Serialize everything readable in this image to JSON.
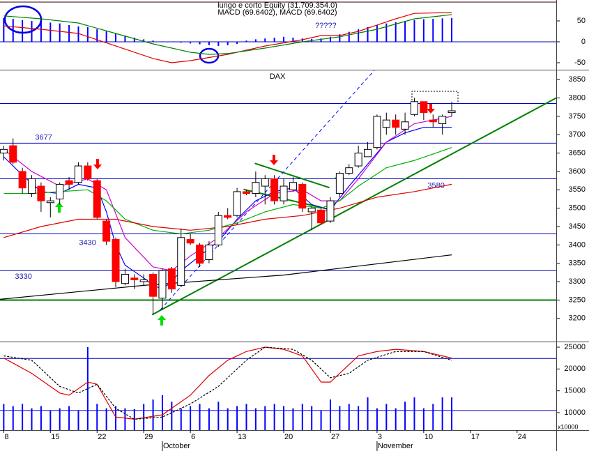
{
  "chart_data": [
    {
      "type": "bar",
      "title": "lungo e corto Equity (31.709.354.0)",
      "subtitle": "MACD (69.6402), MACD (69.6402)",
      "color": "#0000ff",
      "xlim": [
        -0.4,
        59.2
      ],
      "ylim": [
        -66.7,
        100
      ],
      "yticks": [
        50,
        0,
        -50
      ],
      "hlines": [
        0
      ],
      "values": [
        57,
        55,
        52,
        50,
        48,
        46,
        44,
        40,
        37,
        35,
        30,
        25,
        20,
        15,
        10,
        6,
        3,
        1,
        0,
        -2,
        -4,
        -6,
        -8,
        -10,
        -8,
        -5,
        3,
        6,
        8,
        10,
        12,
        10,
        8,
        7,
        8,
        12,
        18,
        24,
        30,
        35,
        40,
        44,
        47,
        50,
        52,
        54,
        55,
        56,
        57
      ],
      "series": [
        {
          "color": "#e00000",
          "x": [
            0,
            4,
            8,
            12,
            16,
            18,
            20,
            24,
            28,
            32,
            34,
            36,
            38,
            40,
            42,
            44,
            48
          ],
          "values": [
            38,
            30,
            20,
            -10,
            -40,
            -50,
            -45,
            -30,
            -10,
            5,
            15,
            15,
            25,
            40,
            55,
            68,
            70
          ]
        },
        {
          "color": "#008000",
          "x": [
            0,
            4,
            8,
            12,
            16,
            20,
            22,
            24,
            28,
            32,
            36,
            40,
            44,
            48
          ],
          "values": [
            62,
            55,
            45,
            20,
            -5,
            -25,
            -30,
            -28,
            -15,
            0,
            12,
            30,
            55,
            65
          ]
        }
      ],
      "annotations": [
        {
          "text": "?????",
          "x": 34.5,
          "y": 38
        }
      ]
    },
    {
      "type": "candlestick",
      "title": "DAX",
      "xlim": [
        -0.4,
        59.2
      ],
      "ylim": [
        3137,
        3875
      ],
      "yticks": [
        3200,
        3250,
        3300,
        3350,
        3400,
        3450,
        3500,
        3550,
        3600,
        3650,
        3700,
        3750,
        3800,
        3850
      ],
      "up_color": "#ffffff",
      "down_color": "#ff0000",
      "open": [
        3650,
        3670,
        3600,
        3540,
        3560,
        3515,
        3525,
        3575,
        3570,
        3615,
        3575,
        3465,
        3415,
        3295,
        3310,
        3300,
        3320,
        3255,
        3335,
        3290,
        3415,
        3400,
        3360,
        3400,
        3480,
        3480,
        3545,
        3540,
        3560,
        3580,
        3520,
        3550,
        3565,
        3490,
        3495,
        3465,
        3540,
        3595,
        3615,
        3640,
        3665,
        3720,
        3740,
        3715,
        3755,
        3790,
        3740,
        3730,
        3760
      ],
      "high": [
        3670,
        3690,
        3610,
        3590,
        3570,
        3530,
        3570,
        3585,
        3625,
        3625,
        3580,
        3470,
        3420,
        3335,
        3320,
        3320,
        3325,
        3335,
        3340,
        3445,
        3430,
        3405,
        3410,
        3490,
        3500,
        3555,
        3550,
        3600,
        3590,
        3590,
        3580,
        3585,
        3570,
        3505,
        3500,
        3530,
        3600,
        3620,
        3670,
        3680,
        3755,
        3760,
        3755,
        3760,
        3800,
        3790,
        3755,
        3755,
        3790
      ],
      "low": [
        3630,
        3620,
        3540,
        3530,
        3490,
        3475,
        3510,
        3550,
        3565,
        3575,
        3470,
        3400,
        3285,
        3290,
        3280,
        3290,
        3210,
        3225,
        3270,
        3285,
        3400,
        3340,
        3350,
        3395,
        3470,
        3475,
        3535,
        3530,
        3510,
        3510,
        3510,
        3545,
        3490,
        3440,
        3455,
        3460,
        3530,
        3590,
        3610,
        3640,
        3660,
        3700,
        3700,
        3700,
        3750,
        3740,
        3720,
        3700,
        3750
      ],
      "close": [
        3660,
        3625,
        3555,
        3580,
        3520,
        3520,
        3565,
        3565,
        3615,
        3580,
        3475,
        3410,
        3300,
        3320,
        3305,
        3305,
        3260,
        3330,
        3280,
        3420,
        3405,
        3350,
        3400,
        3480,
        3475,
        3545,
        3540,
        3570,
        3580,
        3520,
        3560,
        3570,
        3500,
        3500,
        3460,
        3520,
        3595,
        3610,
        3650,
        3660,
        3750,
        3740,
        3720,
        3735,
        3790,
        3760,
        3735,
        3750,
        3765
      ],
      "levels": [
        3677,
        3580,
        3430,
        3330
      ],
      "hlines": [
        3785
      ],
      "support": 3250,
      "series": [
        {
          "color": "#0000ff",
          "x": [
            0,
            2,
            4,
            6,
            8,
            10,
            11,
            12,
            13,
            15,
            16,
            17,
            18,
            19,
            21,
            23,
            25,
            27,
            29,
            31,
            33,
            35,
            37,
            39,
            41,
            43,
            45,
            48
          ],
          "values": [
            3640,
            3590,
            3545,
            3540,
            3565,
            3555,
            3490,
            3400,
            3345,
            3310,
            3290,
            3280,
            3300,
            3330,
            3370,
            3410,
            3470,
            3520,
            3545,
            3555,
            3510,
            3495,
            3560,
            3620,
            3680,
            3705,
            3720,
            3720
          ]
        },
        {
          "color": "#d000d0",
          "x": [
            0,
            3,
            6,
            9,
            11,
            13,
            16,
            18,
            20,
            23,
            26,
            29,
            32,
            34,
            36,
            38,
            41,
            44,
            48
          ],
          "values": [
            3660,
            3600,
            3560,
            3580,
            3550,
            3420,
            3340,
            3330,
            3370,
            3420,
            3490,
            3540,
            3550,
            3520,
            3520,
            3580,
            3680,
            3730,
            3750
          ]
        },
        {
          "color": "#00b000",
          "x": [
            0,
            3,
            6,
            9,
            11,
            13,
            16,
            19,
            22,
            25,
            28,
            31,
            34,
            36,
            38,
            41,
            44,
            48
          ],
          "values": [
            3540,
            3540,
            3545,
            3550,
            3520,
            3470,
            3440,
            3430,
            3440,
            3460,
            3490,
            3510,
            3500,
            3520,
            3560,
            3610,
            3630,
            3665
          ]
        },
        {
          "color": "#e00000",
          "x": [
            0,
            4,
            8,
            12,
            16,
            20,
            24,
            28,
            32,
            36,
            40,
            44,
            48
          ],
          "values": [
            3420,
            3450,
            3470,
            3470,
            3450,
            3440,
            3450,
            3470,
            3480,
            3500,
            3530,
            3545,
            3565
          ]
        },
        {
          "color": "#000000",
          "x": [
            -0.4,
            15,
            30,
            48
          ],
          "values": [
            3252,
            3290,
            3318,
            3373
          ]
        }
      ],
      "trendlines": [
        {
          "color": "#008000",
          "x": [
            15.9,
            59.2
          ],
          "y": [
            3210,
            3800
          ]
        },
        {
          "color": "#008000",
          "x": [
            26.9,
            34.9
          ],
          "y": [
            3622,
            3556
          ]
        },
        {
          "color": "#008000",
          "x": [
            25.7,
            34.7
          ],
          "y": [
            3551,
            3498
          ]
        },
        {
          "color": "#0000ff",
          "dash": true,
          "x": [
            16.8,
            39.7
          ],
          "y": [
            3224,
            3875
          ]
        }
      ]
    },
    {
      "type": "bar",
      "unit_label": "x10000",
      "color": "#0000ff",
      "xlim": [
        -0.4,
        59.2
      ],
      "ylim": [
        6010,
        26117
      ],
      "yticks": [
        25000,
        20000,
        15000,
        10000
      ],
      "hlines": [
        22400,
        10500
      ],
      "values": [
        12000,
        11500,
        12000,
        11000,
        11500,
        10500,
        11000,
        11500,
        10500,
        25000,
        12000,
        11000,
        11500,
        11000,
        10800,
        12000,
        13000,
        14000,
        12500,
        11000,
        11500,
        12000,
        11000,
        12500,
        11000,
        11500,
        12000,
        11000,
        11500,
        12000,
        11500,
        11000,
        12000,
        11500,
        10500,
        13000,
        11500,
        12000,
        11500,
        13500,
        11000,
        12000,
        11000,
        12500,
        13500,
        11000,
        12000,
        13500,
        13500
      ],
      "series": [
        {
          "color": "#e00000",
          "x": [
            0,
            3,
            6,
            7,
            9,
            10,
            12,
            14,
            17,
            20,
            22,
            24,
            26,
            28,
            30,
            32,
            33,
            34,
            35,
            36,
            38,
            40,
            42,
            45,
            48
          ],
          "values": [
            22500,
            19000,
            14500,
            14000,
            17000,
            16500,
            9000,
            8500,
            9500,
            14000,
            18500,
            22000,
            24000,
            25000,
            24500,
            23000,
            20000,
            17000,
            17000,
            19000,
            23000,
            24000,
            24500,
            24000,
            22500
          ]
        },
        {
          "color": "#000000",
          "dash": true,
          "x": [
            0,
            3,
            6,
            8,
            10,
            12,
            14,
            17,
            20,
            23,
            26,
            28,
            31,
            33,
            35,
            37,
            39,
            42,
            45,
            48
          ],
          "values": [
            23000,
            22000,
            16000,
            14500,
            16500,
            11000,
            8500,
            9000,
            12000,
            16000,
            22000,
            25000,
            24500,
            22000,
            18000,
            19000,
            22000,
            24000,
            24000,
            22000
          ]
        }
      ],
      "xticks": [
        {
          "value": 0,
          "label": "8"
        },
        {
          "value": 5,
          "label": "15"
        },
        {
          "value": 10,
          "label": "22"
        },
        {
          "value": 15,
          "label": "29"
        },
        {
          "value": 20,
          "label": "6"
        },
        {
          "value": 25,
          "label": "13"
        },
        {
          "value": 30,
          "label": "20"
        },
        {
          "value": 35,
          "label": "27"
        },
        {
          "value": 40,
          "label": "3"
        },
        {
          "value": 45,
          "label": "10"
        },
        {
          "value": 50,
          "label": "17"
        },
        {
          "value": 55,
          "label": "24"
        }
      ],
      "months": [
        {
          "value": 17,
          "label": "October"
        },
        {
          "value": 40,
          "label": "November"
        }
      ]
    }
  ]
}
